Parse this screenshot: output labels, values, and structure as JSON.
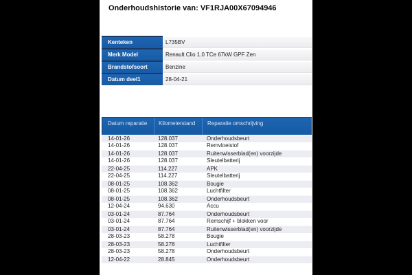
{
  "title": "Onderhoudshistorie van: VF1RJA00X67094946",
  "vehicle_info": {
    "rows": [
      {
        "label": "Kenteken",
        "value": "L735BV"
      },
      {
        "label": "Merk Model",
        "value": "Renault Clio 1.0 TCe 67kW GPF Zen"
      },
      {
        "label": "Brandstofsoort",
        "value": "Benzine"
      },
      {
        "label": "Datum deel1",
        "value": "28-04-21"
      }
    ]
  },
  "history_table": {
    "columns": [
      "Datum reparatie",
      "Kilometerstand",
      "Reparatie omschrijving"
    ],
    "rows": [
      {
        "date": "14-01-26",
        "km": "128.037",
        "desc": "Onderhoudsbeurt"
      },
      {
        "date": "14-01-26",
        "km": "128.037",
        "desc": "Remvloeistof"
      },
      {
        "date": "14-01-26",
        "km": "128.037",
        "desc": "Ruitenwisserblad(en) voorzijde"
      },
      {
        "date": "14-01-26",
        "km": "128.037",
        "desc": "Sleutelbatterij"
      },
      {
        "date": "22-04-25",
        "km": "114.227",
        "desc": "APK"
      },
      {
        "date": "22-04-25",
        "km": "114.227",
        "desc": "Sleutelbatterij"
      },
      {
        "date": "08-01-25",
        "km": "108.362",
        "desc": "Bougie"
      },
      {
        "date": "08-01-25",
        "km": "108.362",
        "desc": "Luchtfilter"
      },
      {
        "date": "08-01-25",
        "km": "108.362",
        "desc": "Onderhoudsbeurt"
      },
      {
        "date": "12-04-24",
        "km": "94.630",
        "desc": "Accu"
      },
      {
        "date": "03-01-24",
        "km": "87.764",
        "desc": "Onderhoudsbeurt"
      },
      {
        "date": "03-01-24",
        "km": "87.764",
        "desc": "Remschijf + blokken voor"
      },
      {
        "date": "03-01-24",
        "km": "87.764",
        "desc": "Ruitenwisserblad(en) voorzijde"
      },
      {
        "date": "28-03-23",
        "km": "58.278",
        "desc": "Bougie"
      },
      {
        "date": "28-03-23",
        "km": "58.278",
        "desc": "Luchtfilter"
      },
      {
        "date": "28-03-23",
        "km": "58.278",
        "desc": "Onderhoudsbeurt"
      },
      {
        "date": "12-04-22",
        "km": "28.845",
        "desc": "Onderhoudsbeurt"
      }
    ]
  },
  "colors": {
    "backdrop": "#000000",
    "page_background": "#ffffff",
    "table_blue": "#1b60ae",
    "navy_border": "#1c3a63",
    "row_alt": "#ecedf3",
    "row_text": "#232323",
    "header_text": "#d9e6f4"
  }
}
